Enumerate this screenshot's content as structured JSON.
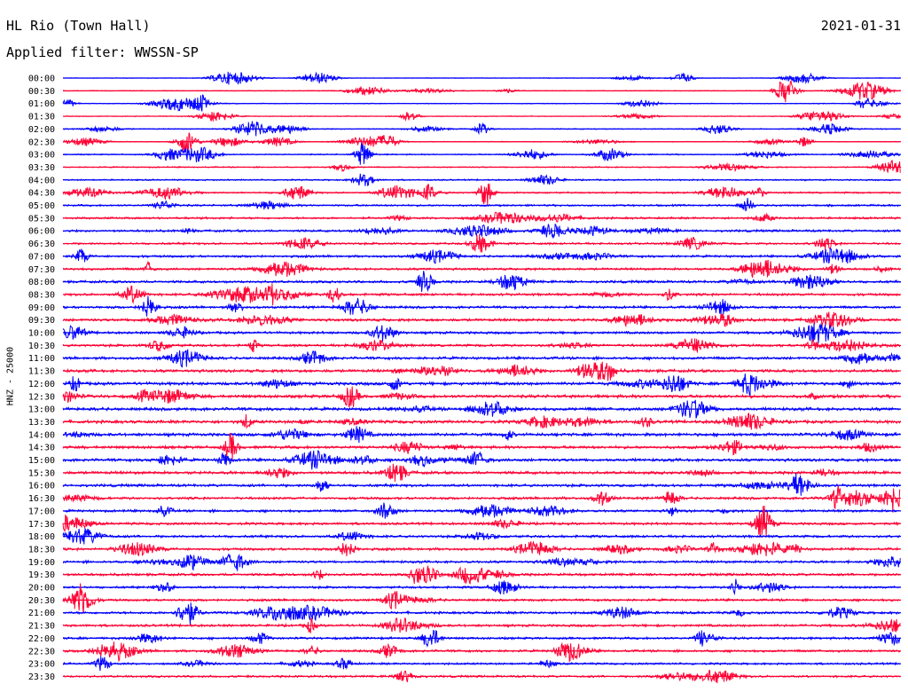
{
  "header": {
    "station": "HL Rio (Town Hall)",
    "date": "2021-01-31",
    "filter": "Applied filter: WWSSN-SP"
  },
  "chart_data": {
    "type": "line",
    "title": "HL Rio (Town Hall)",
    "ylabel": "HNZ - 25000",
    "row_labels": [
      "00:00",
      "00:30",
      "01:00",
      "01:30",
      "02:00",
      "02:30",
      "03:00",
      "03:30",
      "04:00",
      "04:30",
      "05:00",
      "05:30",
      "06:00",
      "06:30",
      "07:00",
      "07:30",
      "08:00",
      "08:30",
      "09:00",
      "09:30",
      "10:00",
      "10:30",
      "11:00",
      "11:30",
      "12:00",
      "12:30",
      "13:00",
      "13:30",
      "14:00",
      "14:30",
      "15:00",
      "15:30",
      "16:00",
      "16:30",
      "17:00",
      "17:30",
      "18:00",
      "18:30",
      "19:00",
      "19:30",
      "20:00",
      "20:30",
      "21:00",
      "21:30",
      "22:00",
      "22:30",
      "23:00",
      "23:30"
    ],
    "row_colors": [
      "#0000ff",
      "#ff0033"
    ],
    "noise_level": [
      0.15,
      0.2,
      0.2,
      0.2,
      0.25,
      0.2,
      0.3,
      0.3,
      0.35,
      0.4,
      0.45,
      0.5,
      0.55,
      0.5,
      0.55,
      0.55,
      0.6,
      0.6,
      0.6,
      0.65,
      0.6,
      0.6,
      0.65,
      0.7,
      0.75,
      0.75,
      0.75,
      0.75,
      0.75,
      0.7,
      0.7,
      0.7,
      0.65,
      0.6,
      0.6,
      0.6,
      0.6,
      0.6,
      0.6,
      0.6,
      0.55,
      0.55,
      0.6,
      0.6,
      0.55,
      0.55,
      0.5,
      0.5
    ]
  }
}
